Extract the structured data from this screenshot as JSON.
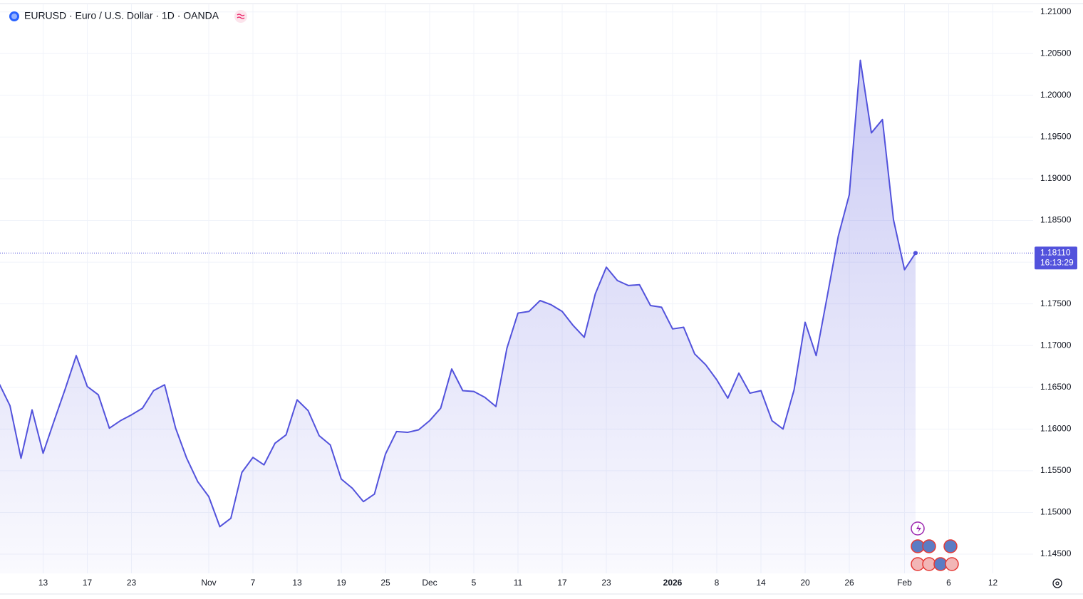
{
  "chart_data": {
    "type": "area-line",
    "title": "EURUSD · Euro / U.S. Dollar · 1D · OANDA",
    "categories": [
      null,
      null,
      null,
      null,
      "13",
      null,
      null,
      null,
      "17",
      null,
      null,
      null,
      "23",
      null,
      null,
      null,
      null,
      null,
      null,
      "Nov",
      null,
      null,
      null,
      "7",
      null,
      null,
      null,
      "13",
      null,
      null,
      null,
      "19",
      null,
      null,
      null,
      "25",
      null,
      null,
      null,
      "Dec",
      null,
      null,
      null,
      "5",
      null,
      null,
      null,
      "11",
      null,
      null,
      null,
      "17",
      null,
      null,
      null,
      "23",
      null,
      null,
      null,
      null,
      null,
      "2026",
      null,
      null,
      null,
      "8",
      null,
      null,
      null,
      "14",
      null,
      null,
      null,
      "20",
      null,
      null,
      null,
      "26",
      null,
      null,
      null,
      null,
      "Feb",
      null,
      null,
      null,
      "6",
      null,
      null,
      null,
      "12"
    ],
    "values": [
      1.1655,
      1.1628,
      1.1565,
      1.1623,
      1.1571,
      1.161,
      1.1648,
      1.1688,
      1.1651,
      1.1641,
      1.1601,
      1.161,
      1.1617,
      1.1625,
      1.1646,
      1.1653,
      1.1601,
      1.1565,
      1.1537,
      1.1519,
      1.1483,
      1.1493,
      1.1548,
      1.1566,
      1.1557,
      1.1583,
      1.1593,
      1.1635,
      1.1622,
      1.1592,
      1.1581,
      1.154,
      1.1529,
      1.1513,
      1.1522,
      1.157,
      1.1597,
      1.1596,
      1.1599,
      1.161,
      1.1625,
      1.1672,
      1.1646,
      1.1645,
      1.1638,
      1.1627,
      1.1697,
      1.1739,
      1.1741,
      1.1754,
      1.1749,
      1.1741,
      1.1724,
      1.171,
      1.1762,
      1.1794,
      1.1778,
      1.1772,
      1.1773,
      1.1748,
      1.1746,
      1.172,
      1.1722,
      1.169,
      1.1677,
      1.1659,
      1.1637,
      1.1667,
      1.1643,
      1.1646,
      1.161,
      1.16,
      1.1647,
      1.1728,
      1.1688,
      1.1759,
      1.1831,
      1.1881,
      1.2042,
      1.1955,
      1.1971,
      1.1851,
      1.1791,
      1.1811,
      null,
      null,
      null,
      null,
      null,
      null,
      null
    ],
    "color": "#5252dc",
    "ylim": [
      1.1427,
      1.211
    ],
    "yticks": [
      {
        "value": 1.145,
        "label": "1.14500"
      },
      {
        "value": 1.15,
        "label": "1.15000"
      },
      {
        "value": 1.155,
        "label": "1.15500"
      },
      {
        "value": 1.16,
        "label": "1.16000"
      },
      {
        "value": 1.165,
        "label": "1.16500"
      },
      {
        "value": 1.17,
        "label": "1.17000"
      },
      {
        "value": 1.175,
        "label": "1.17500"
      },
      {
        "value": 1.18,
        "label": "1.18000"
      },
      {
        "value": 1.185,
        "label": "1.18500"
      },
      {
        "value": 1.19,
        "label": "1.19000"
      },
      {
        "value": 1.195,
        "label": "1.19500"
      },
      {
        "value": 1.2,
        "label": "1.20000"
      },
      {
        "value": 1.205,
        "label": "1.20500"
      },
      {
        "value": 1.21,
        "label": "1.21000"
      }
    ],
    "last_price": {
      "value": 1.1811,
      "label": "1.18110"
    },
    "countdown": "16:13:29",
    "grid": true
  }
}
